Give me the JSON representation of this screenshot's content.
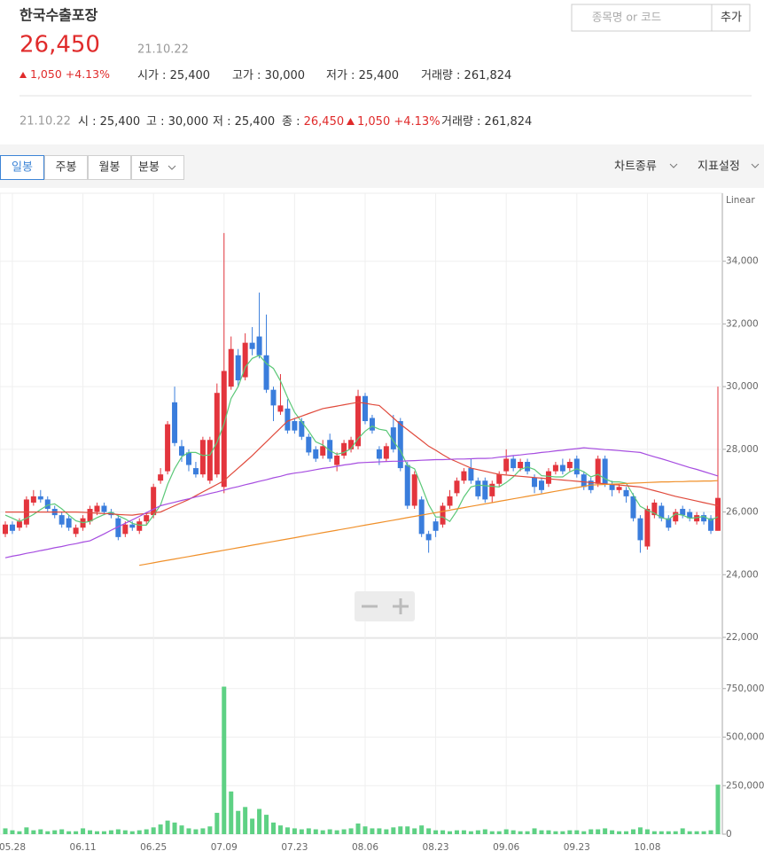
{
  "header": {
    "title": "한국수출포장",
    "price": "26,450",
    "date": "21.10.22",
    "change": "1,050",
    "change_rate": "+4.13%",
    "stats": [
      {
        "label": "시가 :",
        "value": "25,400"
      },
      {
        "label": "고가 :",
        "value": "30,000"
      },
      {
        "label": "저가 :",
        "value": "25,400"
      },
      {
        "label": "거래량 :",
        "value": "261,824"
      }
    ],
    "search_placeholder": "종목명 or 코드",
    "add_button": "추가"
  },
  "summary": {
    "date": "21.10.22",
    "items": [
      {
        "label": "시 :",
        "value": "25,400"
      },
      {
        "label": "고 :",
        "value": "30,000"
      },
      {
        "label": "저 :",
        "value": "25,400"
      },
      {
        "label": "종 :",
        "value": "26,450"
      }
    ],
    "change": "1,050",
    "change_rate": "+4.13%",
    "volume_label": "거래량 :",
    "volume": "261,824"
  },
  "toolbar": {
    "tabs": [
      "일봉",
      "주봉",
      "월봉",
      "분봉"
    ],
    "chart_type": "차트종류",
    "indicator": "지표설정"
  },
  "chart_data": [
    {
      "type": "candlestick",
      "scale_label": "Linear",
      "up_color": "#e3353d",
      "down_color": "#3a7ddc",
      "grid": true,
      "ylim": [
        22000,
        36000
      ],
      "yticks": [
        {
          "value": 22000,
          "label": "22,000"
        },
        {
          "value": 24000,
          "label": "24,000"
        },
        {
          "value": 26000,
          "label": "26,000"
        },
        {
          "value": 28000,
          "label": "28,000"
        },
        {
          "value": 30000,
          "label": "30,000"
        },
        {
          "value": 32000,
          "label": "32,000"
        },
        {
          "value": 34000,
          "label": "34,000"
        }
      ],
      "open": [
        25300,
        25600,
        25500,
        25600,
        26300,
        26500,
        26400,
        26100,
        25900,
        25800,
        25300,
        25500,
        25700,
        26000,
        26200,
        26000,
        25800,
        25300,
        25600,
        25400,
        25700,
        25900,
        27000,
        27300,
        29500,
        28100,
        27900,
        27400,
        27200,
        27000,
        27200,
        26800,
        30000,
        31000,
        30300,
        31400,
        31600,
        31000,
        29900,
        29200,
        29300,
        28900,
        28900,
        28400,
        28000,
        27800,
        28300,
        27500,
        27800,
        28000,
        28100,
        29700,
        29000,
        28000,
        27700,
        28700,
        28900,
        27500,
        26200,
        26400,
        25300,
        25700,
        25600,
        26200,
        26600,
        27000,
        27400,
        27000,
        27000,
        26500,
        26900,
        27300,
        27700,
        27400,
        27600,
        27100,
        27000,
        26900,
        27300,
        27500,
        27400,
        27700,
        27200,
        27000,
        26900,
        27700,
        26900,
        26700,
        26700,
        26500,
        25800,
        24900,
        25900,
        26200,
        25800,
        25700,
        26100,
        26000,
        25700,
        25900,
        25800,
        25400
      ],
      "high": [
        25700,
        25700,
        25800,
        26500,
        26700,
        26700,
        26500,
        26200,
        26000,
        25900,
        25600,
        25900,
        26200,
        26300,
        26300,
        26100,
        25900,
        25700,
        25700,
        25800,
        26000,
        26900,
        27400,
        28900,
        30000,
        28300,
        28000,
        27600,
        28400,
        28400,
        30100,
        34900,
        31600,
        31200,
        31700,
        31900,
        33000,
        32300,
        30000,
        30400,
        29600,
        29000,
        29000,
        28500,
        28100,
        28300,
        28500,
        27900,
        28300,
        28400,
        29900,
        29800,
        29100,
        28100,
        28200,
        29100,
        29000,
        27600,
        27300,
        26500,
        25400,
        25800,
        26300,
        26700,
        27100,
        27400,
        27700,
        27100,
        27100,
        27000,
        27300,
        28000,
        27800,
        27700,
        27700,
        27200,
        27100,
        27400,
        27600,
        27700,
        27700,
        27800,
        27300,
        27100,
        27800,
        27800,
        27000,
        26900,
        26800,
        26600,
        25900,
        26200,
        26400,
        26300,
        25900,
        26100,
        26200,
        26100,
        26000,
        26000,
        25900,
        30000
      ],
      "low": [
        25200,
        25300,
        25400,
        25500,
        26200,
        26300,
        26000,
        25800,
        25500,
        25400,
        25200,
        25400,
        25600,
        25900,
        25900,
        25800,
        25100,
        25200,
        25400,
        25300,
        25600,
        25800,
        26900,
        27200,
        28100,
        27600,
        27300,
        27100,
        27100,
        26900,
        27100,
        26600,
        29900,
        30000,
        30200,
        31000,
        30900,
        29800,
        28900,
        29100,
        28500,
        28500,
        28300,
        27800,
        27600,
        27700,
        27600,
        27300,
        27700,
        27900,
        28000,
        28800,
        28500,
        27500,
        27600,
        27900,
        27300,
        26100,
        26100,
        25200,
        24700,
        25200,
        25500,
        26100,
        26500,
        26900,
        26900,
        26400,
        26300,
        26300,
        26800,
        27200,
        27300,
        27300,
        27200,
        26600,
        26600,
        26800,
        27200,
        27200,
        27300,
        27100,
        26700,
        26600,
        26800,
        26800,
        26500,
        26600,
        26300,
        25700,
        24700,
        24800,
        25800,
        25700,
        25400,
        25600,
        25800,
        25700,
        25600,
        25600,
        25300,
        25400
      ],
      "close": [
        25600,
        25400,
        25700,
        26400,
        26500,
        26400,
        26100,
        25900,
        25600,
        25500,
        25500,
        25800,
        26100,
        26200,
        26000,
        25900,
        25200,
        25600,
        25500,
        25700,
        25900,
        26800,
        27200,
        28800,
        28200,
        27800,
        27500,
        27200,
        28300,
        28300,
        29800,
        30500,
        31200,
        30200,
        31400,
        31200,
        31000,
        29900,
        29400,
        29400,
        28600,
        28600,
        28400,
        27900,
        27700,
        28100,
        27700,
        27800,
        28200,
        28300,
        29700,
        28900,
        28600,
        27700,
        28100,
        28000,
        27400,
        26200,
        27200,
        25300,
        25100,
        25400,
        26200,
        26500,
        27000,
        27300,
        27000,
        26500,
        26400,
        26900,
        27200,
        27700,
        27400,
        27600,
        27300,
        26800,
        26700,
        27300,
        27500,
        27300,
        27600,
        27200,
        26800,
        26700,
        27700,
        26900,
        26700,
        26800,
        26500,
        25800,
        25100,
        26100,
        26300,
        25800,
        25500,
        26000,
        25900,
        25800,
        25900,
        25700,
        25400,
        26450
      ],
      "series": [
        {
          "color": "#5cc878",
          "values": [
            25900,
            25800,
            25700,
            25800,
            25920,
            26080,
            26220,
            26260,
            26100,
            25900,
            25720,
            25660,
            25700,
            25820,
            25920,
            26000,
            25880,
            25780,
            25640,
            25580,
            25580,
            25900,
            26220,
            26880,
            27380,
            27760,
            27900,
            27900,
            27800,
            27820,
            28220,
            28820,
            29620,
            30000,
            30620,
            30900,
            31000,
            30740,
            30580,
            30180,
            29660,
            29180,
            28880,
            28580,
            28240,
            28140,
            27960,
            27840,
            27900,
            28020,
            28340,
            28580,
            28740,
            28640,
            28600,
            28260,
            27960,
            27480,
            27380,
            26820,
            26240,
            25840,
            25840,
            25700,
            26040,
            26480,
            26800,
            26860,
            26840,
            26820,
            26800,
            26940,
            27120,
            27360,
            27440,
            27360,
            27160,
            27140,
            27120,
            27120,
            27280,
            27380,
            27280,
            27120,
            27200,
            27060,
            26960,
            26960,
            26920,
            26540,
            26180,
            26060,
            25960,
            25820,
            25760,
            25940,
            25900,
            25800,
            25820,
            25860,
            25740,
            25850
          ]
        },
        {
          "color": "#e04a3c",
          "values": [
            26000,
            26000,
            26000,
            26000,
            26000,
            26000,
            26000,
            26000,
            26000,
            26000,
            26000,
            25990,
            25980,
            25960,
            25950,
            25940,
            25920,
            25910,
            25900,
            25930,
            25950,
            25980,
            26000,
            26100,
            26200,
            26300,
            26400,
            26520,
            26640,
            26760,
            26880,
            27000,
            27200,
            27400,
            27600,
            27800,
            28020,
            28240,
            28460,
            28680,
            28900,
            28980,
            29060,
            29140,
            29220,
            29300,
            29340,
            29380,
            29420,
            29460,
            29500,
            29470,
            29430,
            29400,
            29200,
            29000,
            28800,
            28630,
            28450,
            28280,
            28100,
            27970,
            27830,
            27700,
            27600,
            27500,
            27400,
            27350,
            27300,
            27250,
            27200,
            27180,
            27160,
            27140,
            27120,
            27100,
            27080,
            27060,
            27040,
            27020,
            27000,
            26980,
            26960,
            26940,
            26920,
            26900,
            26880,
            26860,
            26840,
            26820,
            26800,
            26740,
            26680,
            26620,
            26560,
            26500,
            26450,
            26400,
            26350,
            26300,
            26250,
            26200
          ]
        },
        {
          "color": "#a64de0",
          "values": [
            24540,
            24590,
            24630,
            24680,
            24720,
            24770,
            24810,
            24860,
            24900,
            24950,
            24990,
            25040,
            25080,
            25190,
            25300,
            25420,
            25530,
            25640,
            25750,
            25860,
            25980,
            26090,
            26200,
            26260,
            26310,
            26370,
            26420,
            26480,
            26530,
            26590,
            26640,
            26700,
            26760,
            26810,
            26870,
            26920,
            26980,
            27030,
            27090,
            27140,
            27200,
            27240,
            27270,
            27310,
            27350,
            27390,
            27420,
            27460,
            27500,
            27530,
            27570,
            27580,
            27590,
            27600,
            27610,
            27620,
            27620,
            27630,
            27640,
            27650,
            27660,
            27670,
            27670,
            27680,
            27690,
            27690,
            27700,
            27710,
            27710,
            27720,
            27750,
            27770,
            27800,
            27820,
            27850,
            27870,
            27900,
            27920,
            27950,
            27970,
            28000,
            28020,
            28050,
            28030,
            28010,
            27990,
            27980,
            27960,
            27940,
            27920,
            27900,
            27830,
            27760,
            27700,
            27630,
            27560,
            27490,
            27420,
            27360,
            27290,
            27220,
            27150
          ]
        },
        {
          "color": "#f0902a",
          "values": [
            null,
            null,
            null,
            null,
            null,
            null,
            null,
            null,
            null,
            null,
            null,
            null,
            null,
            null,
            null,
            null,
            null,
            null,
            null,
            24300,
            24340,
            24380,
            24420,
            24460,
            24500,
            24540,
            24580,
            24620,
            24660,
            24700,
            24740,
            24780,
            24820,
            24860,
            24900,
            24940,
            24980,
            25020,
            25060,
            25100,
            25140,
            25180,
            25220,
            25260,
            25300,
            25340,
            25380,
            25420,
            25460,
            25500,
            25540,
            25580,
            25620,
            25660,
            25700,
            25740,
            25780,
            25820,
            25860,
            25900,
            25940,
            25980,
            26020,
            26060,
            26100,
            26140,
            26180,
            26220,
            26260,
            26300,
            26340,
            26380,
            26420,
            26460,
            26500,
            26540,
            26580,
            26620,
            26660,
            26700,
            26740,
            26780,
            26820,
            26860,
            26870,
            26880,
            26890,
            26900,
            26910,
            26920,
            26930,
            26940,
            26950,
            26960,
            26960,
            26970,
            26970,
            26980,
            26980,
            26990,
            26990,
            27000
          ]
        }
      ]
    },
    {
      "type": "bar",
      "color": "#5ed184",
      "grid": true,
      "ylim": [
        0,
        1000000
      ],
      "yticks": [
        0,
        {
          "value": 250000,
          "label": "250,000"
        },
        {
          "value": 500000,
          "label": "500,000"
        },
        {
          "value": 750000,
          "label": "750,000"
        }
      ],
      "categories": [
        null,
        "05.28",
        null,
        null,
        null,
        null,
        null,
        null,
        null,
        null,
        null,
        "06.11",
        null,
        null,
        null,
        null,
        null,
        null,
        null,
        null,
        null,
        "06.25",
        null,
        null,
        null,
        null,
        null,
        null,
        null,
        null,
        null,
        "07.09",
        null,
        null,
        null,
        null,
        null,
        null,
        null,
        null,
        null,
        "07.23",
        null,
        null,
        null,
        null,
        null,
        null,
        null,
        null,
        null,
        "08.06",
        null,
        null,
        null,
        null,
        null,
        null,
        null,
        null,
        null,
        "08.23",
        null,
        null,
        null,
        null,
        null,
        null,
        null,
        null,
        null,
        "09.06",
        null,
        null,
        null,
        null,
        null,
        null,
        null,
        null,
        null,
        "09.23",
        null,
        null,
        null,
        null,
        null,
        null,
        null,
        null,
        null,
        "10.08",
        null,
        null,
        null,
        null,
        null,
        null,
        null,
        null,
        null,
        null
      ],
      "values": [
        30000,
        20000,
        15000,
        35000,
        20000,
        25000,
        15000,
        20000,
        25000,
        15000,
        15000,
        30000,
        20000,
        15000,
        15000,
        20000,
        25000,
        20000,
        15000,
        20000,
        25000,
        35000,
        50000,
        70000,
        60000,
        45000,
        30000,
        25000,
        30000,
        40000,
        110000,
        760000,
        220000,
        120000,
        140000,
        80000,
        130000,
        100000,
        60000,
        45000,
        35000,
        30000,
        25000,
        30000,
        25000,
        20000,
        25000,
        20000,
        25000,
        30000,
        55000,
        40000,
        30000,
        30000,
        25000,
        35000,
        40000,
        40000,
        30000,
        45000,
        30000,
        20000,
        20000,
        15000,
        20000,
        20000,
        15000,
        20000,
        25000,
        15000,
        15000,
        25000,
        20000,
        15000,
        15000,
        30000,
        20000,
        20000,
        15000,
        15000,
        20000,
        20000,
        15000,
        25000,
        25000,
        30000,
        20000,
        15000,
        15000,
        25000,
        35000,
        25000,
        15000,
        15000,
        15000,
        15000,
        30000,
        15000,
        15000,
        15000,
        20000,
        255000
      ]
    }
  ]
}
